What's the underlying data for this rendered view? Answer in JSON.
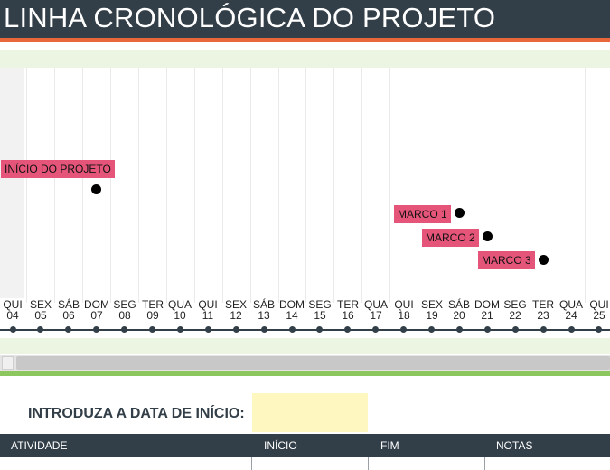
{
  "header": {
    "title": "LINHA CRONOLÓGICA DO PROJETO"
  },
  "timeline": {
    "days": [
      {
        "weekday": "QUI",
        "date": "04"
      },
      {
        "weekday": "SEX",
        "date": "05"
      },
      {
        "weekday": "SÁB",
        "date": "06"
      },
      {
        "weekday": "DOM",
        "date": "07"
      },
      {
        "weekday": "SEG",
        "date": "08"
      },
      {
        "weekday": "TER",
        "date": "09"
      },
      {
        "weekday": "QUA",
        "date": "10"
      },
      {
        "weekday": "QUI",
        "date": "11"
      },
      {
        "weekday": "SEX",
        "date": "12"
      },
      {
        "weekday": "SÁB",
        "date": "13"
      },
      {
        "weekday": "DOM",
        "date": "14"
      },
      {
        "weekday": "SEG",
        "date": "15"
      },
      {
        "weekday": "TER",
        "date": "16"
      },
      {
        "weekday": "QUA",
        "date": "17"
      },
      {
        "weekday": "QUI",
        "date": "18"
      },
      {
        "weekday": "SEX",
        "date": "19"
      },
      {
        "weekday": "SÁB",
        "date": "20"
      },
      {
        "weekday": "DOM",
        "date": "21"
      },
      {
        "weekday": "SEG",
        "date": "22"
      },
      {
        "weekday": "TER",
        "date": "23"
      },
      {
        "weekday": "QUA",
        "date": "24"
      },
      {
        "weekday": "QUI",
        "date": "25"
      }
    ],
    "milestones": [
      {
        "label": "INÍCIO DO PROJETO",
        "day_index": 3,
        "lane": 0
      },
      {
        "label": "MARCO 1",
        "day_index": 16,
        "lane": 1
      },
      {
        "label": "MARCO 2",
        "day_index": 17,
        "lane": 2
      },
      {
        "label": "MARCO 3",
        "day_index": 19,
        "lane": 3
      }
    ],
    "colors": {
      "milestone": "#e5557a",
      "axis": "#333f48",
      "band": "#ebf5e2"
    }
  },
  "form": {
    "start_date_label": "INTRODUZA A DATA DE INÍCIO:",
    "start_date_value": ""
  },
  "table": {
    "columns": [
      "ATIVIDADE",
      "INÍCIO",
      "FIM",
      "NOTAS"
    ]
  }
}
